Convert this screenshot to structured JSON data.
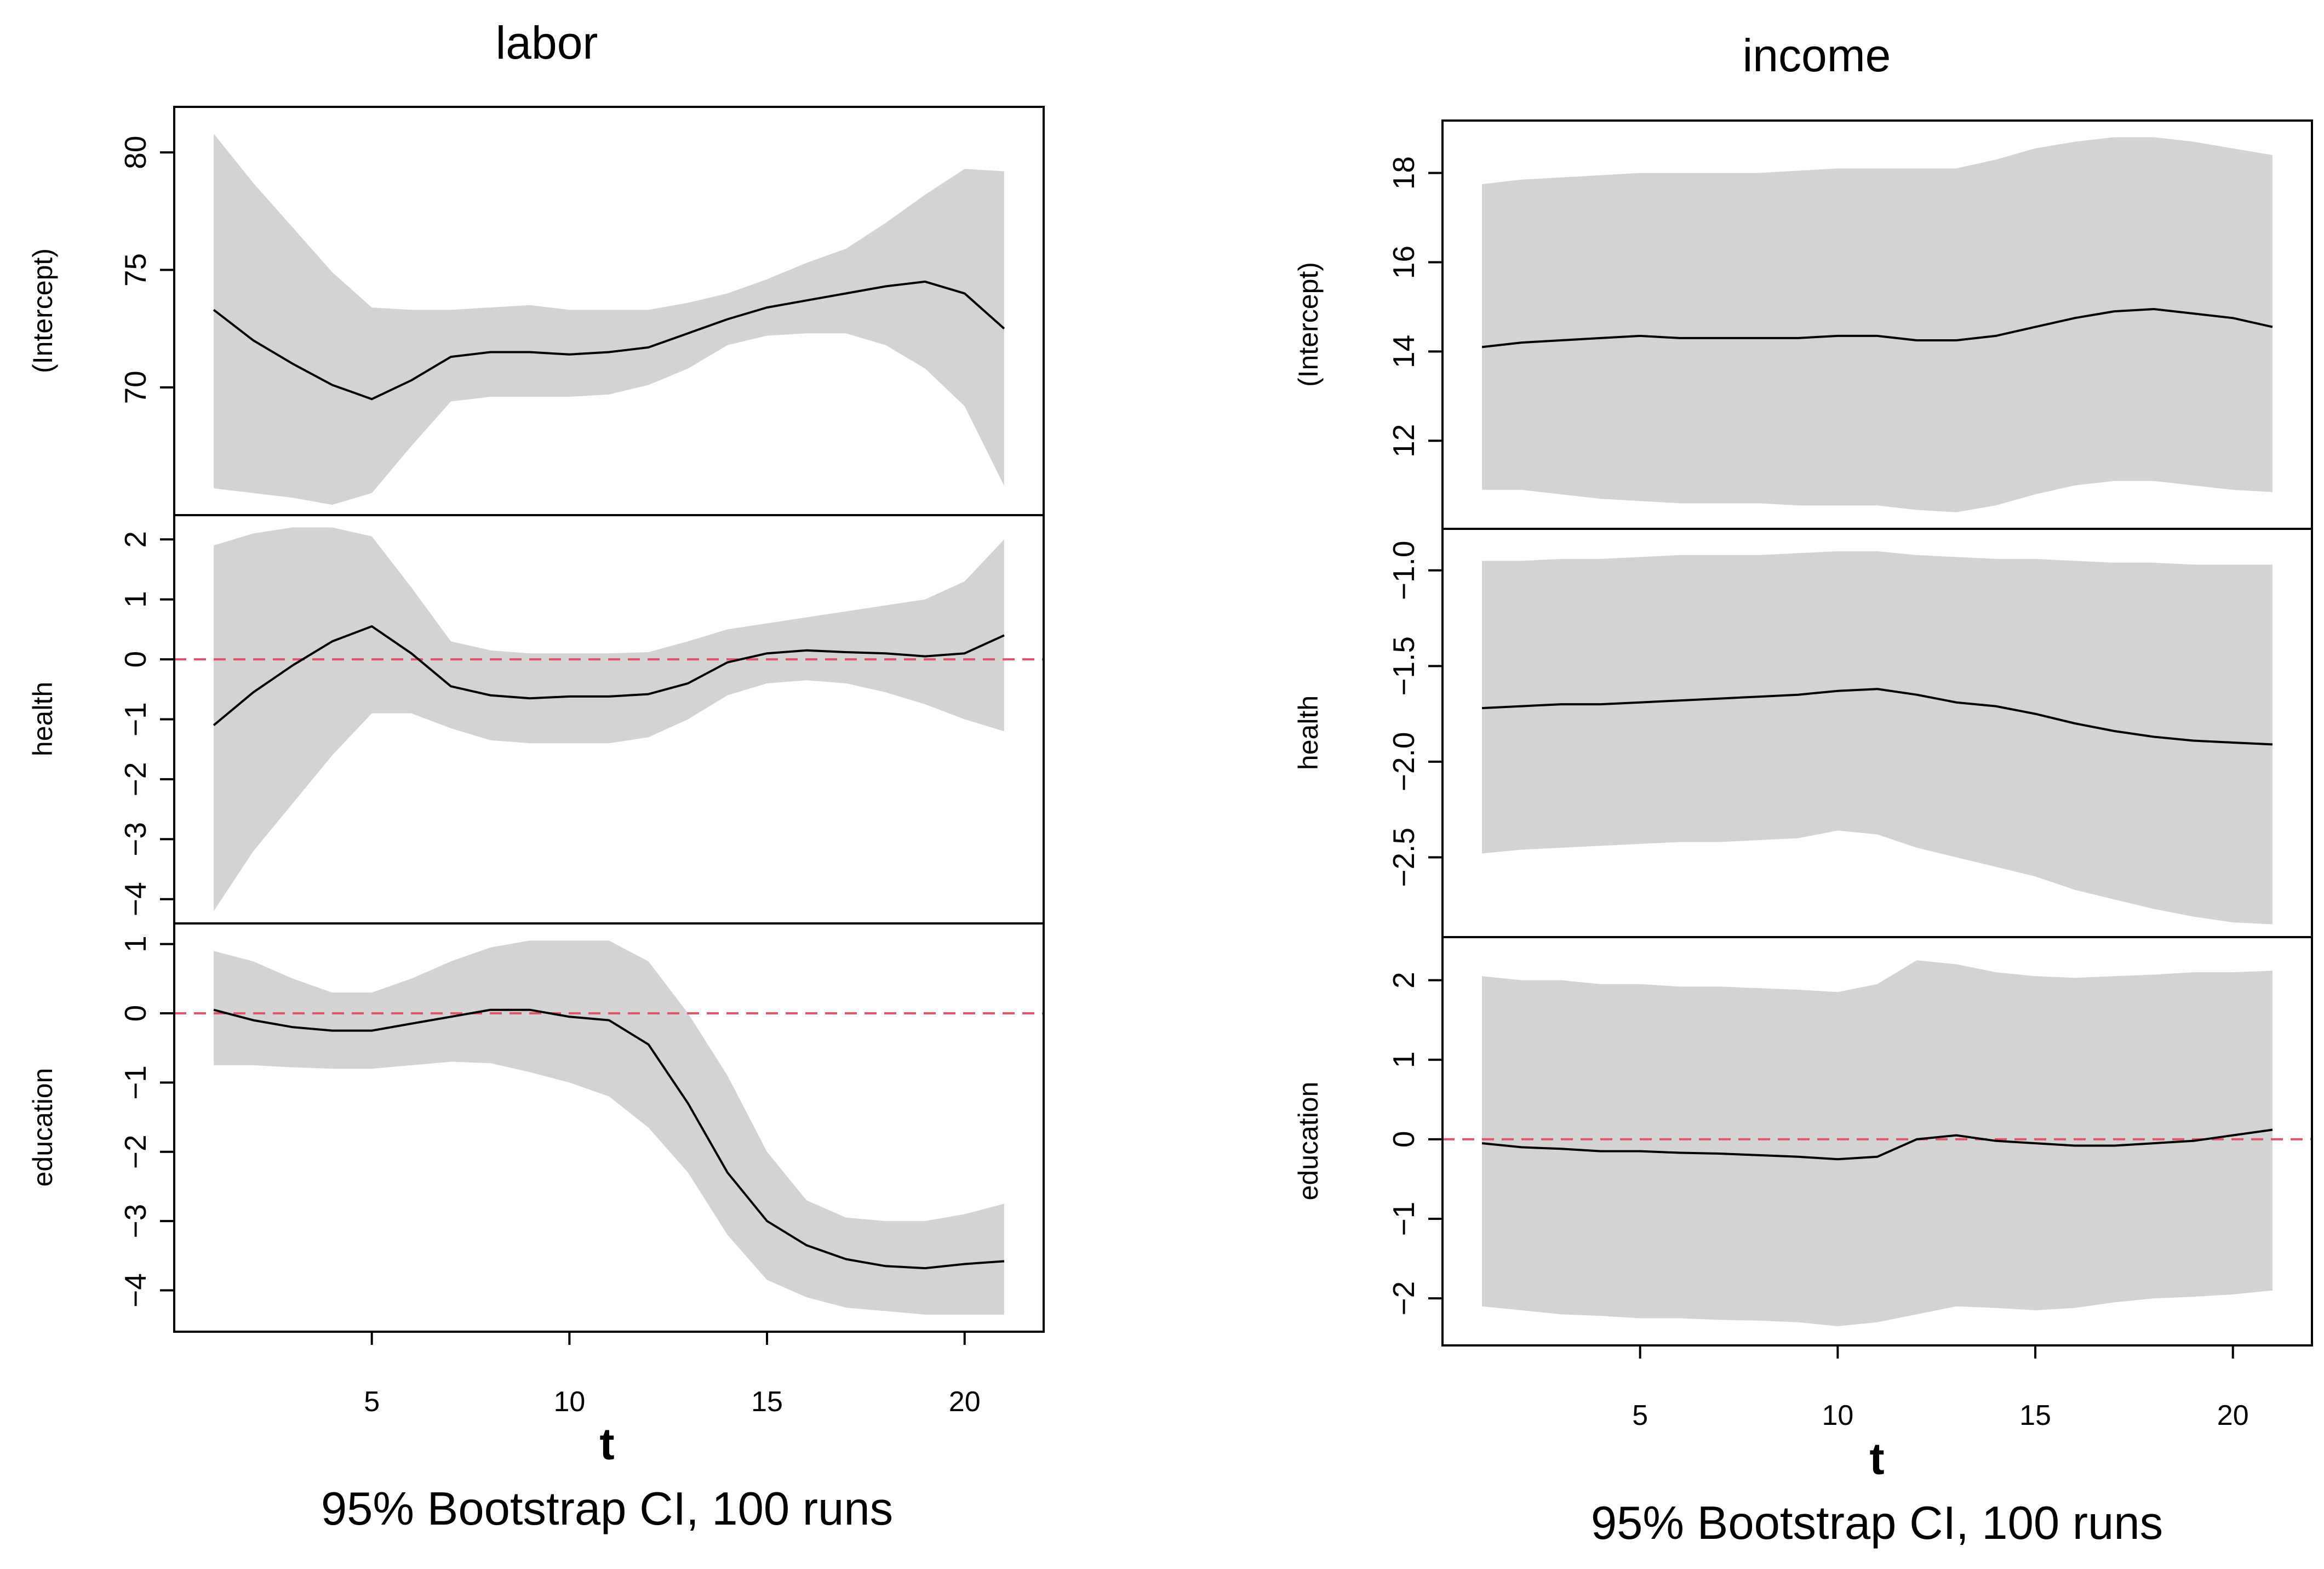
{
  "chart_data": [
    {
      "type": "line",
      "title": "labor",
      "xlabel": "t",
      "subtitle": "95% Bootstrap CI, 100 runs",
      "x": [
        1,
        2,
        3,
        4,
        5,
        6,
        7,
        8,
        9,
        10,
        11,
        12,
        13,
        14,
        15,
        16,
        17,
        18,
        19,
        20,
        21
      ],
      "xlim": [
        0,
        22
      ],
      "x_ticks": [
        5,
        10,
        15,
        20
      ],
      "x_tick_labels": [
        "5",
        "10",
        "15",
        "20"
      ],
      "facets": [
        {
          "ylabel": "(Intercept)",
          "ylim": [
            64.7,
            81.8
          ],
          "y_ticks": [
            70,
            75,
            80
          ],
          "y_tick_labels": [
            "70",
            "75",
            "80"
          ],
          "zero_line": false,
          "estimate": [
            73.3,
            72.0,
            71.0,
            70.1,
            69.5,
            70.3,
            71.3,
            71.5,
            71.5,
            71.4,
            71.5,
            71.7,
            72.3,
            72.9,
            73.4,
            73.7,
            74.0,
            74.3,
            74.5,
            74.0,
            72.5
          ],
          "lower": [
            65.7,
            65.5,
            65.3,
            65.0,
            65.5,
            67.5,
            69.4,
            69.6,
            69.6,
            69.6,
            69.7,
            70.1,
            70.8,
            71.8,
            72.2,
            72.3,
            72.3,
            71.8,
            70.8,
            69.2,
            65.8
          ],
          "upper": [
            80.8,
            78.7,
            76.8,
            74.9,
            73.4,
            73.3,
            73.3,
            73.4,
            73.5,
            73.3,
            73.3,
            73.3,
            73.6,
            74.0,
            74.6,
            75.3,
            75.9,
            77.0,
            78.2,
            79.3,
            79.2
          ]
        },
        {
          "ylabel": "health",
          "ylim": [
            -4.35,
            2.35
          ],
          "y_ticks": [
            -4,
            -3,
            -2,
            -1,
            0,
            1,
            2
          ],
          "y_tick_labels": [
            "−4",
            "−3",
            "−2",
            "−1",
            "0",
            "1",
            "2"
          ],
          "zero_line": true,
          "estimate": [
            -1.1,
            -0.55,
            -0.1,
            0.3,
            0.55,
            0.1,
            -0.45,
            -0.6,
            -0.65,
            -0.62,
            -0.62,
            -0.58,
            -0.4,
            -0.05,
            0.1,
            0.15,
            0.12,
            0.1,
            0.05,
            0.1,
            0.4
          ],
          "lower": [
            -4.2,
            -3.2,
            -2.4,
            -1.6,
            -0.9,
            -0.9,
            -1.15,
            -1.35,
            -1.4,
            -1.4,
            -1.4,
            -1.3,
            -1.0,
            -0.6,
            -0.4,
            -0.35,
            -0.4,
            -0.55,
            -0.75,
            -1.0,
            -1.2
          ],
          "upper": [
            1.9,
            2.1,
            2.2,
            2.2,
            2.05,
            1.2,
            0.3,
            0.15,
            0.1,
            0.1,
            0.1,
            0.12,
            0.3,
            0.5,
            0.6,
            0.7,
            0.8,
            0.9,
            1.0,
            1.3,
            2.0
          ]
        },
        {
          "ylabel": "education",
          "ylim": [
            -4.55,
            1.25
          ],
          "y_ticks": [
            -4,
            -3,
            -2,
            -1,
            0,
            1
          ],
          "y_tick_labels": [
            "−4",
            "−3",
            "−2",
            "−1",
            "0",
            "1"
          ],
          "zero_line": true,
          "estimate": [
            0.05,
            -0.1,
            -0.2,
            -0.25,
            -0.25,
            -0.15,
            -0.05,
            0.05,
            0.05,
            -0.05,
            -0.1,
            -0.45,
            -1.3,
            -2.3,
            -3.0,
            -3.35,
            -3.55,
            -3.65,
            -3.68,
            -3.62,
            -3.58
          ],
          "lower": [
            -0.75,
            -0.75,
            -0.78,
            -0.8,
            -0.8,
            -0.75,
            -0.7,
            -0.72,
            -0.85,
            -1.0,
            -1.2,
            -1.65,
            -2.3,
            -3.2,
            -3.85,
            -4.1,
            -4.25,
            -4.3,
            -4.35,
            -4.35,
            -4.35
          ],
          "upper": [
            0.9,
            0.75,
            0.5,
            0.3,
            0.3,
            0.5,
            0.75,
            0.95,
            1.05,
            1.05,
            1.05,
            0.75,
            0.0,
            -0.9,
            -2.0,
            -2.7,
            -2.95,
            -3.0,
            -3.0,
            -2.9,
            -2.75
          ]
        }
      ]
    },
    {
      "type": "line",
      "title": "income",
      "xlabel": "t",
      "subtitle": "95% Bootstrap CI, 100 runs",
      "x": [
        1,
        2,
        3,
        4,
        5,
        6,
        7,
        8,
        9,
        10,
        11,
        12,
        13,
        14,
        15,
        16,
        17,
        18,
        19,
        20,
        21
      ],
      "xlim": [
        0,
        22
      ],
      "x_ticks": [
        5,
        10,
        15,
        20
      ],
      "x_tick_labels": [
        "5",
        "10",
        "15",
        "20"
      ],
      "facets": [
        {
          "ylabel": "(Intercept)",
          "ylim": [
            10.1,
            19.1
          ],
          "y_ticks": [
            12,
            14,
            16,
            18
          ],
          "y_tick_labels": [
            "12",
            "14",
            "16",
            "18"
          ],
          "zero_line": false,
          "estimate": [
            14.1,
            14.2,
            14.25,
            14.3,
            14.35,
            14.3,
            14.3,
            14.3,
            14.3,
            14.35,
            14.35,
            14.25,
            14.25,
            14.35,
            14.55,
            14.75,
            14.9,
            14.95,
            14.85,
            14.75,
            14.55
          ],
          "lower": [
            10.9,
            10.9,
            10.8,
            10.7,
            10.65,
            10.6,
            10.6,
            10.6,
            10.55,
            10.55,
            10.55,
            10.45,
            10.4,
            10.55,
            10.8,
            11.0,
            11.1,
            11.1,
            11.0,
            10.9,
            10.85
          ],
          "upper": [
            17.75,
            17.85,
            17.9,
            17.95,
            18.0,
            18.0,
            18.0,
            18.0,
            18.05,
            18.1,
            18.1,
            18.1,
            18.1,
            18.3,
            18.55,
            18.7,
            18.8,
            18.8,
            18.7,
            18.55,
            18.4
          ]
        },
        {
          "ylabel": "health",
          "ylim": [
            -2.9,
            -0.8
          ],
          "y_ticks": [
            -2.5,
            -2.0,
            -1.5,
            -1.0
          ],
          "y_tick_labels": [
            "−2.5",
            "−2.0",
            "−1.5",
            "−1.0"
          ],
          "zero_line": false,
          "estimate": [
            -1.72,
            -1.71,
            -1.7,
            -1.7,
            -1.69,
            -1.68,
            -1.67,
            -1.66,
            -1.65,
            -1.63,
            -1.62,
            -1.65,
            -1.69,
            -1.71,
            -1.75,
            -1.8,
            -1.84,
            -1.87,
            -1.89,
            -1.9,
            -1.91
          ],
          "lower": [
            -2.48,
            -2.46,
            -2.45,
            -2.44,
            -2.43,
            -2.42,
            -2.42,
            -2.41,
            -2.4,
            -2.36,
            -2.38,
            -2.45,
            -2.5,
            -2.55,
            -2.6,
            -2.67,
            -2.72,
            -2.77,
            -2.81,
            -2.84,
            -2.85
          ],
          "upper": [
            -0.95,
            -0.95,
            -0.94,
            -0.94,
            -0.93,
            -0.92,
            -0.92,
            -0.92,
            -0.91,
            -0.9,
            -0.9,
            -0.92,
            -0.93,
            -0.94,
            -0.94,
            -0.95,
            -0.96,
            -0.96,
            -0.97,
            -0.97,
            -0.97
          ]
        },
        {
          "ylabel": "education",
          "ylim": [
            -2.55,
            2.5
          ],
          "y_ticks": [
            -2,
            -1,
            0,
            1,
            2
          ],
          "y_tick_labels": [
            "−2",
            "−1",
            "0",
            "1",
            "2"
          ],
          "zero_line": true,
          "estimate": [
            -0.05,
            -0.1,
            -0.12,
            -0.15,
            -0.15,
            -0.17,
            -0.18,
            -0.2,
            -0.22,
            -0.25,
            -0.22,
            0.0,
            0.05,
            -0.02,
            -0.05,
            -0.08,
            -0.08,
            -0.05,
            -0.02,
            0.05,
            0.12
          ],
          "lower": [
            -2.1,
            -2.15,
            -2.2,
            -2.22,
            -2.25,
            -2.25,
            -2.27,
            -2.28,
            -2.3,
            -2.35,
            -2.3,
            -2.2,
            -2.1,
            -2.12,
            -2.15,
            -2.12,
            -2.05,
            -2.0,
            -1.98,
            -1.95,
            -1.9
          ],
          "upper": [
            2.05,
            2.0,
            2.0,
            1.95,
            1.95,
            1.92,
            1.92,
            1.9,
            1.88,
            1.85,
            1.95,
            2.25,
            2.2,
            2.1,
            2.05,
            2.03,
            2.05,
            2.07,
            2.1,
            2.1,
            2.12
          ]
        }
      ]
    }
  ]
}
